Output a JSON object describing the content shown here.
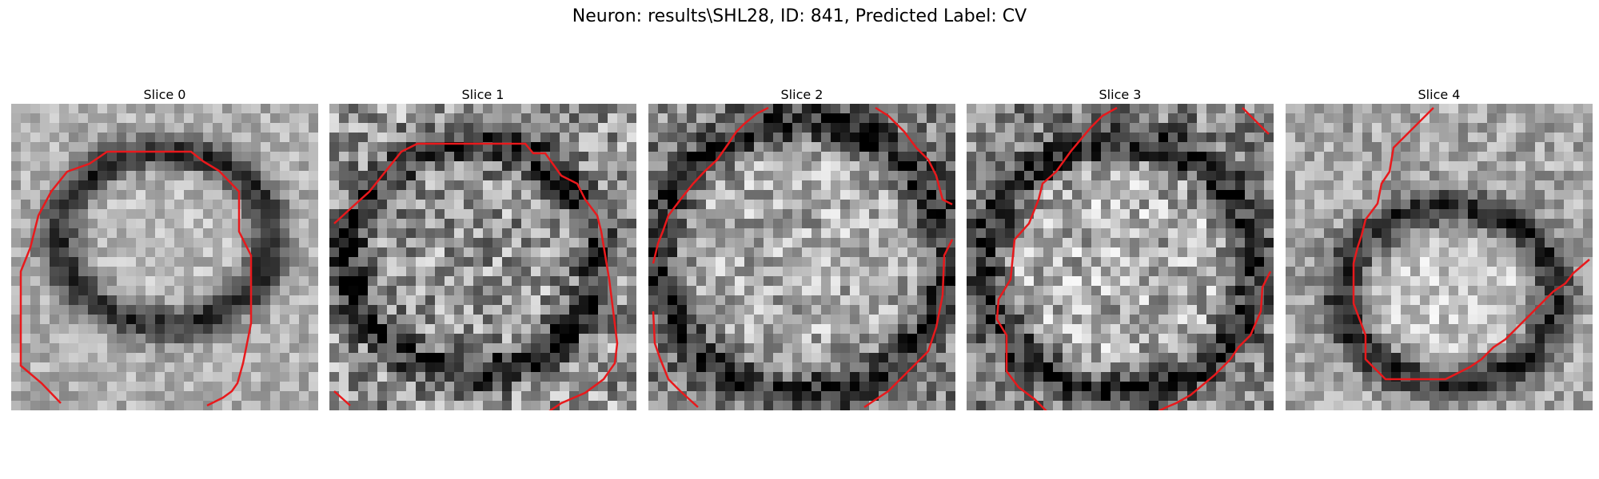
{
  "figure": {
    "title": "Neuron: results\\SHL28, ID: 841, Predicted Label: CV"
  },
  "panels": [
    {
      "title": "Slice 0"
    },
    {
      "title": "Slice 1"
    },
    {
      "title": "Slice 2"
    },
    {
      "title": "Slice 3"
    },
    {
      "title": "Slice 4"
    }
  ],
  "colors": {
    "contour": "#e8191c",
    "background": "#ffffff"
  }
}
